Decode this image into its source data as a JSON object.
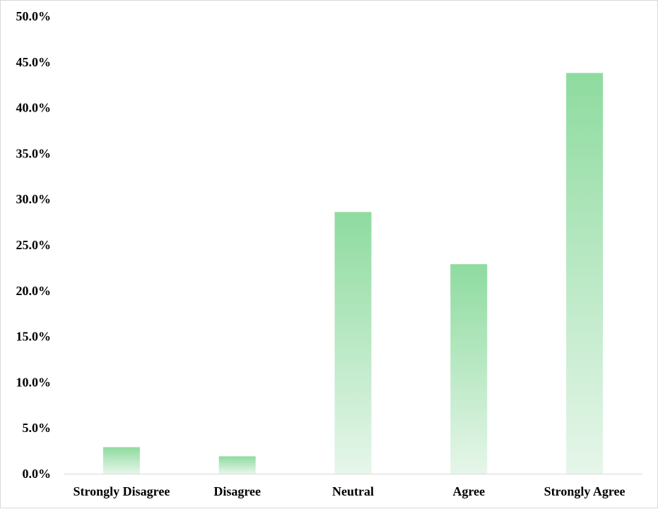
{
  "chart_data": {
    "type": "bar",
    "title": "",
    "xlabel": "",
    "ylabel": "",
    "categories": [
      "Strongly Disagree",
      "Disagree",
      "Neutral",
      "Agree",
      "Strongly Agree"
    ],
    "values": [
      2.9,
      1.9,
      28.6,
      22.9,
      43.8
    ],
    "ylim": [
      0,
      50
    ],
    "y_ticks": [
      "0.0%",
      "5.0%",
      "10.0%",
      "15.0%",
      "20.0%",
      "25.0%",
      "30.0%",
      "35.0%",
      "40.0%",
      "45.0%",
      "50.0%"
    ],
    "grid": false,
    "legend": "none",
    "colors": {
      "bar_top": "#8edb9f",
      "bar_bottom": "#e6f6ea",
      "axis": "#d9d9d9"
    }
  }
}
